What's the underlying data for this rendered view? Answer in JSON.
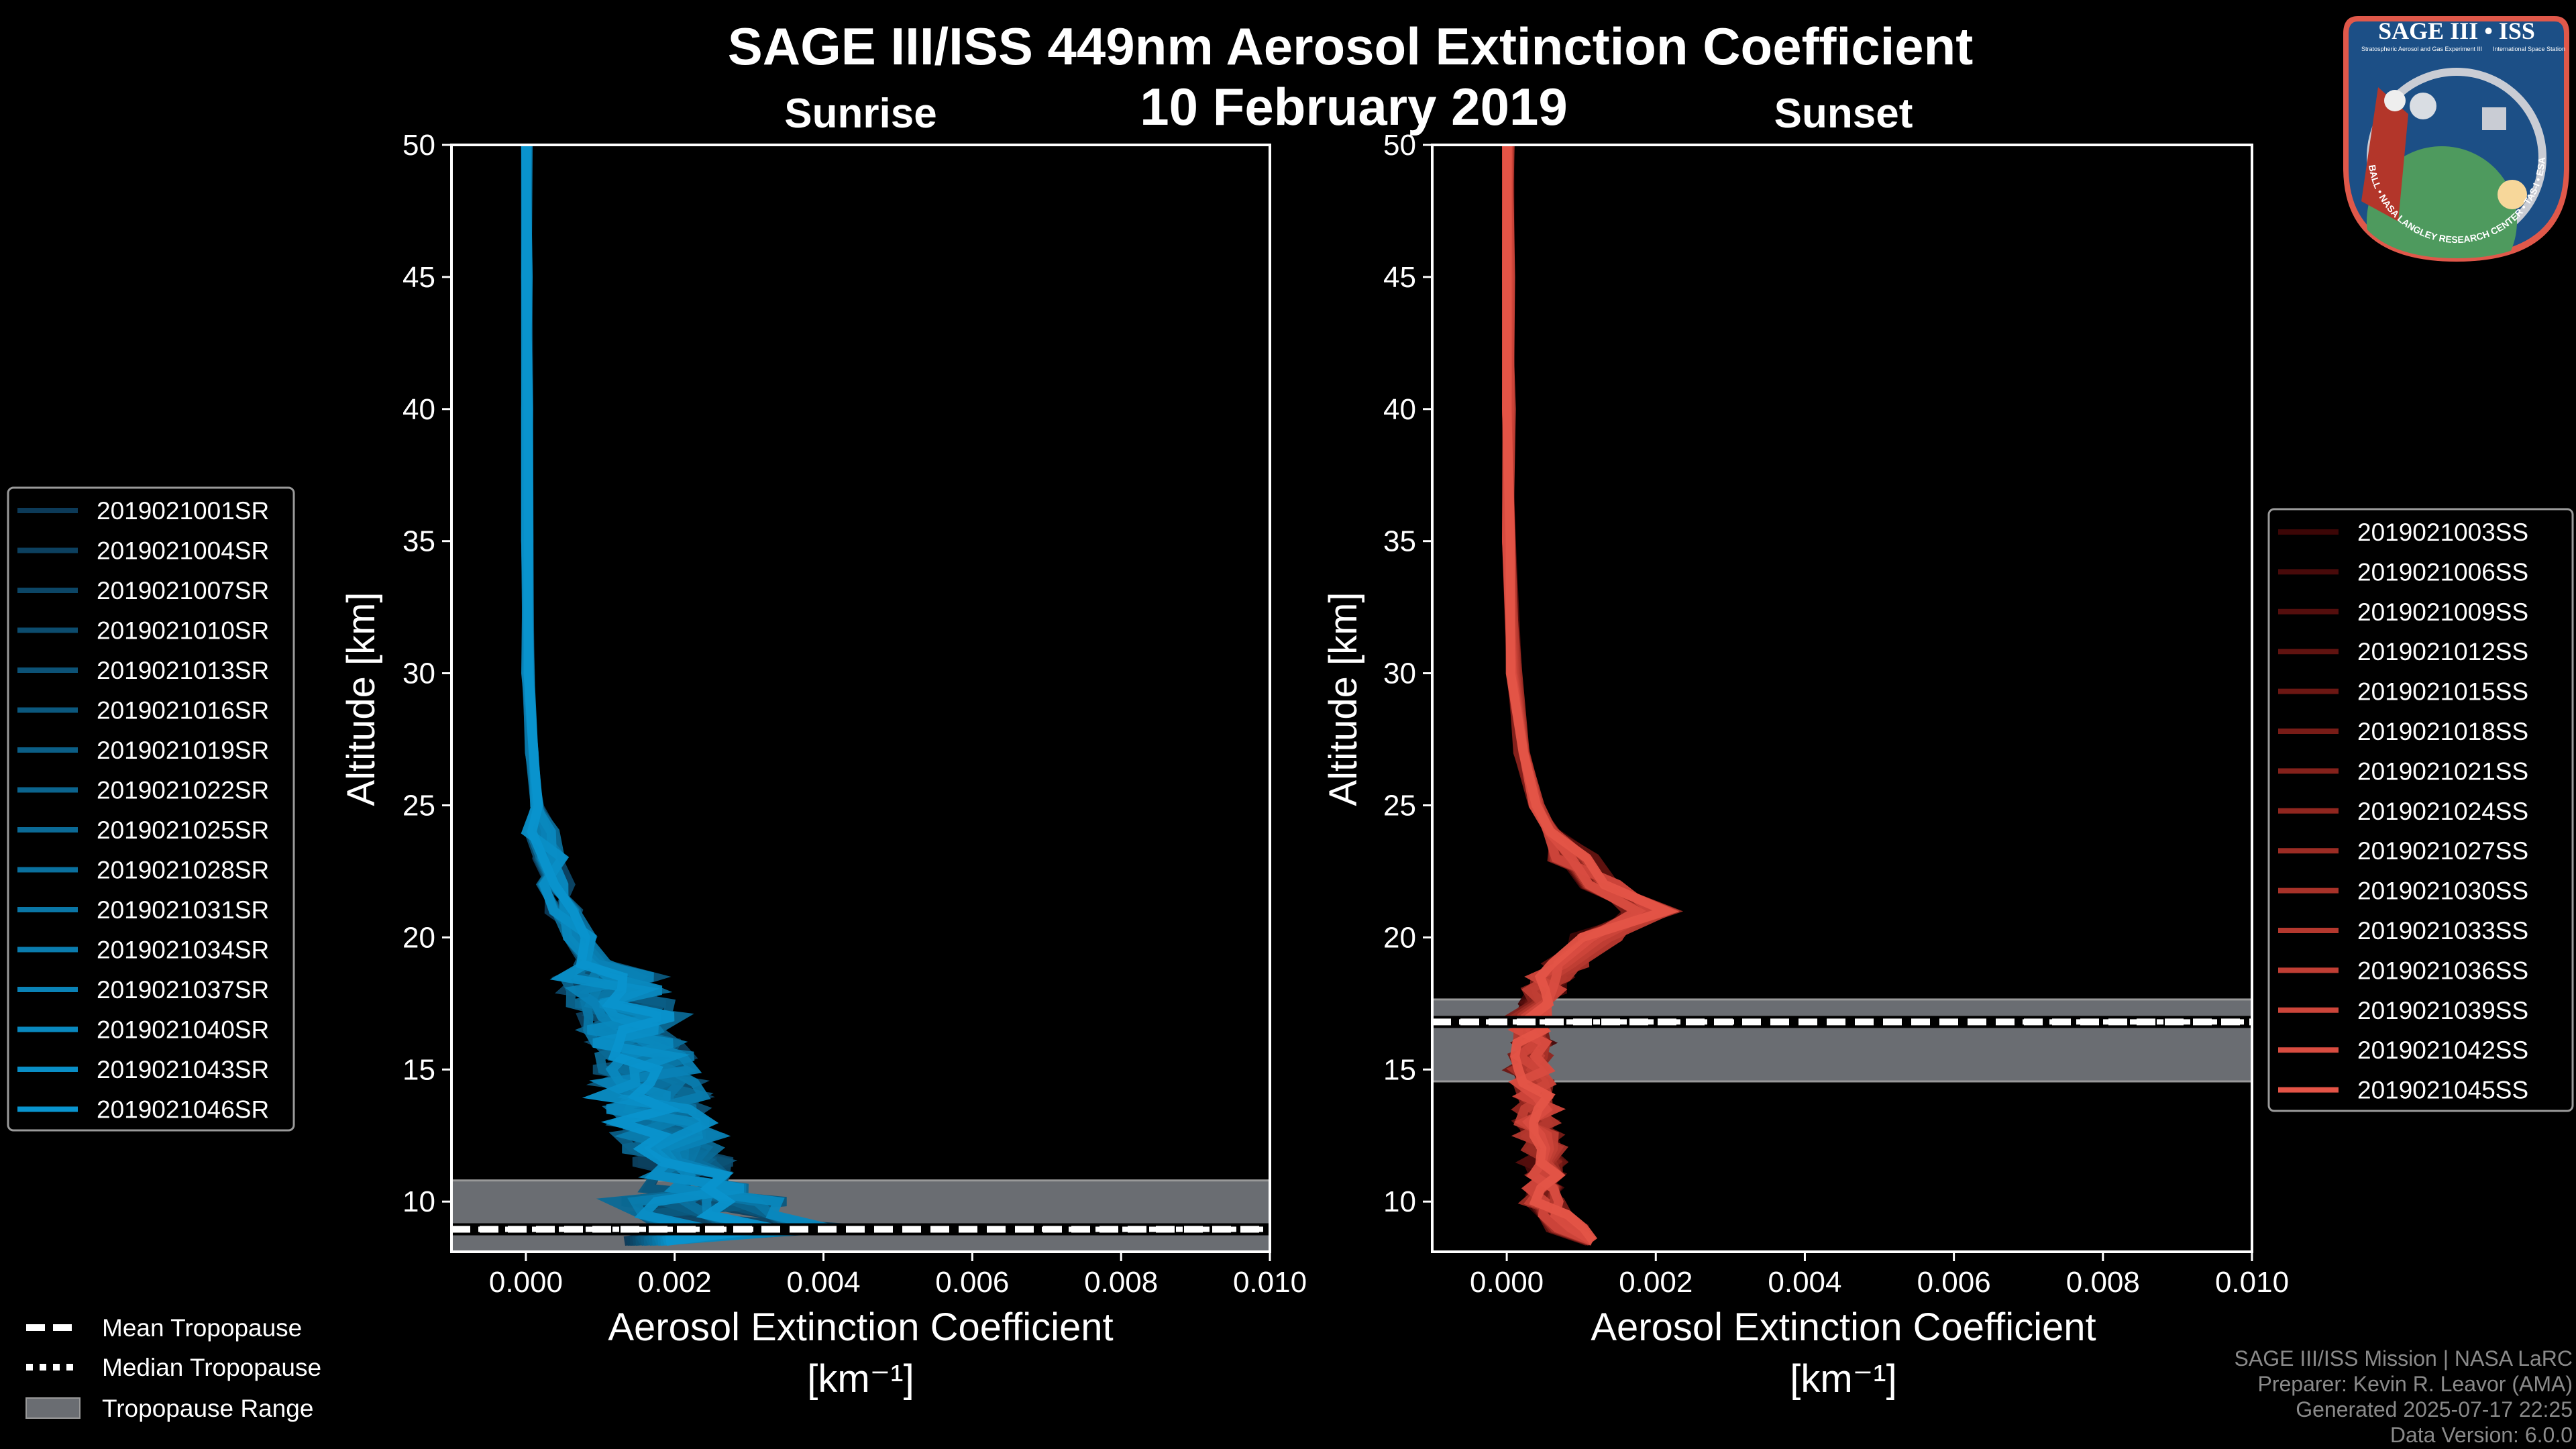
{
  "chart_data": [
    {
      "type": "line",
      "title": "SAGE III/ISS 449nm Aerosol Extinction Coefficient",
      "subtitle": "10 February 2019",
      "panel_title": "Sunrise",
      "xlabel": "Aerosol Extinction Coefficient",
      "xlabel_units": "[km⁻¹]",
      "ylabel": "Altitude [km]",
      "xlim": [
        -0.001,
        0.01
      ],
      "ylim": [
        8.1,
        50
      ],
      "xticks": [
        0.0,
        0.002,
        0.004,
        0.006,
        0.008,
        0.01
      ],
      "xtick_labels": [
        "0.000",
        "0.002",
        "0.004",
        "0.006",
        "0.008",
        "0.010"
      ],
      "yticks": [
        10,
        15,
        20,
        25,
        30,
        35,
        40,
        45,
        50
      ],
      "yticks_labels": [
        "10",
        "15",
        "20",
        "25",
        "30",
        "35",
        "40",
        "45",
        "50"
      ],
      "legend_position": "left",
      "altitude_km": [
        8.5,
        9,
        9.5,
        10,
        10.5,
        11,
        11.5,
        12,
        12.5,
        13,
        13.5,
        14,
        14.5,
        15,
        15.5,
        16,
        16.5,
        17,
        17.5,
        18,
        18.5,
        19,
        20,
        21,
        22,
        23,
        24,
        25,
        27,
        30,
        35,
        40,
        45,
        50
      ],
      "mean_profile": [
        0.002,
        0.003,
        0.0028,
        0.0024,
        0.0023,
        0.0022,
        0.0021,
        0.002,
        0.0019,
        0.0018,
        0.00175,
        0.0017,
        0.00165,
        0.0016,
        0.00155,
        0.0015,
        0.00145,
        0.0014,
        0.0013,
        0.0012,
        0.00105,
        0.0009,
        0.0007,
        0.0005,
        0.0004,
        0.0003,
        0.0002,
        0.00015,
        8e-05,
        3e-05,
        1e-05,
        1e-05,
        0.0,
        0.0
      ],
      "tropopause": {
        "mean_km": 8.95,
        "median_km": 8.95,
        "range_km": [
          8.1,
          10.8
        ]
      },
      "series": [
        {
          "name": "2019021001SR",
          "color": "#0c3a58"
        },
        {
          "name": "2019021004SR",
          "color": "#0c405f"
        },
        {
          "name": "2019021007SR",
          "color": "#0c4666"
        },
        {
          "name": "2019021010SR",
          "color": "#0c4c6e"
        },
        {
          "name": "2019021013SR",
          "color": "#0c5276"
        },
        {
          "name": "2019021016SR",
          "color": "#0b587e"
        },
        {
          "name": "2019021019SR",
          "color": "#0b5e86"
        },
        {
          "name": "2019021022SR",
          "color": "#0b648e"
        },
        {
          "name": "2019021025SR",
          "color": "#0b6a96"
        },
        {
          "name": "2019021028SR",
          "color": "#0a709e"
        },
        {
          "name": "2019021031SR",
          "color": "#0a76a6"
        },
        {
          "name": "2019021034SR",
          "color": "#0a7cae"
        },
        {
          "name": "2019021037SR",
          "color": "#0a82b6"
        },
        {
          "name": "2019021040SR",
          "color": "#0988be"
        },
        {
          "name": "2019021043SR",
          "color": "#098ec6"
        },
        {
          "name": "2019021046SR",
          "color": "#0994ce"
        }
      ]
    },
    {
      "type": "line",
      "panel_title": "Sunset",
      "xlabel": "Aerosol Extinction Coefficient",
      "xlabel_units": "[km⁻¹]",
      "ylabel": "Altitude [km]",
      "xlim": [
        -0.001,
        0.01
      ],
      "ylim": [
        8.1,
        50
      ],
      "xticks": [
        0.0,
        0.002,
        0.004,
        0.006,
        0.008,
        0.01
      ],
      "xtick_labels": [
        "0.000",
        "0.002",
        "0.004",
        "0.006",
        "0.008",
        "0.010"
      ],
      "yticks": [
        10,
        15,
        20,
        25,
        30,
        35,
        40,
        45,
        50
      ],
      "yticks_labels": [
        "10",
        "15",
        "20",
        "25",
        "30",
        "35",
        "40",
        "45",
        "50"
      ],
      "legend_position": "right",
      "altitude_km": [
        8.5,
        9,
        9.5,
        10,
        10.5,
        11,
        11.5,
        12,
        12.5,
        13,
        13.5,
        14,
        14.5,
        15,
        15.5,
        16,
        16.5,
        17,
        17.5,
        18,
        18.5,
        19,
        20,
        21,
        22,
        23,
        24,
        25,
        27,
        30,
        35,
        40,
        45,
        50
      ],
      "mean_profile": [
        0.001,
        0.0008,
        0.0007,
        0.0005,
        0.0005,
        0.0005,
        0.0005,
        0.0005,
        0.00045,
        0.0004,
        0.0004,
        0.0004,
        0.00035,
        0.0003,
        0.0003,
        0.0003,
        0.0003,
        0.0003,
        0.00035,
        0.0005,
        0.0006,
        0.0008,
        0.0012,
        0.0019,
        0.0013,
        0.0009,
        0.0006,
        0.0004,
        0.0002,
        0.0001,
        2e-05,
        1e-05,
        0.0,
        0.0
      ],
      "tropopause": {
        "mean_km": 16.8,
        "median_km": 16.8,
        "range_km": [
          14.55,
          17.65
        ]
      },
      "series": [
        {
          "name": "2019021003SS",
          "color": "#3c0606"
        },
        {
          "name": "2019021006SS",
          "color": "#480a0a"
        },
        {
          "name": "2019021009SS",
          "color": "#540e0d"
        },
        {
          "name": "2019021012SS",
          "color": "#601310"
        },
        {
          "name": "2019021015SS",
          "color": "#6c1713"
        },
        {
          "name": "2019021018SS",
          "color": "#781c17"
        },
        {
          "name": "2019021021SS",
          "color": "#84211b"
        },
        {
          "name": "2019021024SS",
          "color": "#90261f"
        },
        {
          "name": "2019021027SS",
          "color": "#9c2c24"
        },
        {
          "name": "2019021030SS",
          "color": "#a83229"
        },
        {
          "name": "2019021033SS",
          "color": "#b4382e"
        },
        {
          "name": "2019021036SS",
          "color": "#c03e34"
        },
        {
          "name": "2019021039SS",
          "color": "#cc453a"
        },
        {
          "name": "2019021042SS",
          "color": "#d84c40"
        },
        {
          "name": "2019021045SS",
          "color": "#e45447"
        }
      ]
    }
  ],
  "tropopause_legend": {
    "mean": "Mean Tropopause",
    "median": "Median Tropopause",
    "range": "Tropopause Range",
    "range_color": "#6a6d72"
  },
  "logo": {
    "title": "SAGE III • ISS",
    "line1": "Stratospheric Aerosol and Gas Experiment III",
    "line2": "International Space Station",
    "ring": "BALL • NASA LANGLEY RESEARCH CENTER • TAS-I • ESA"
  },
  "footer": {
    "mission": "SAGE III/ISS Mission | NASA LaRC",
    "preparer": "Preparer: Kevin R. Leavor (AMA)",
    "generated": "Generated 2025-07-17 22:25",
    "version": "Data Version: 6.0.0"
  }
}
